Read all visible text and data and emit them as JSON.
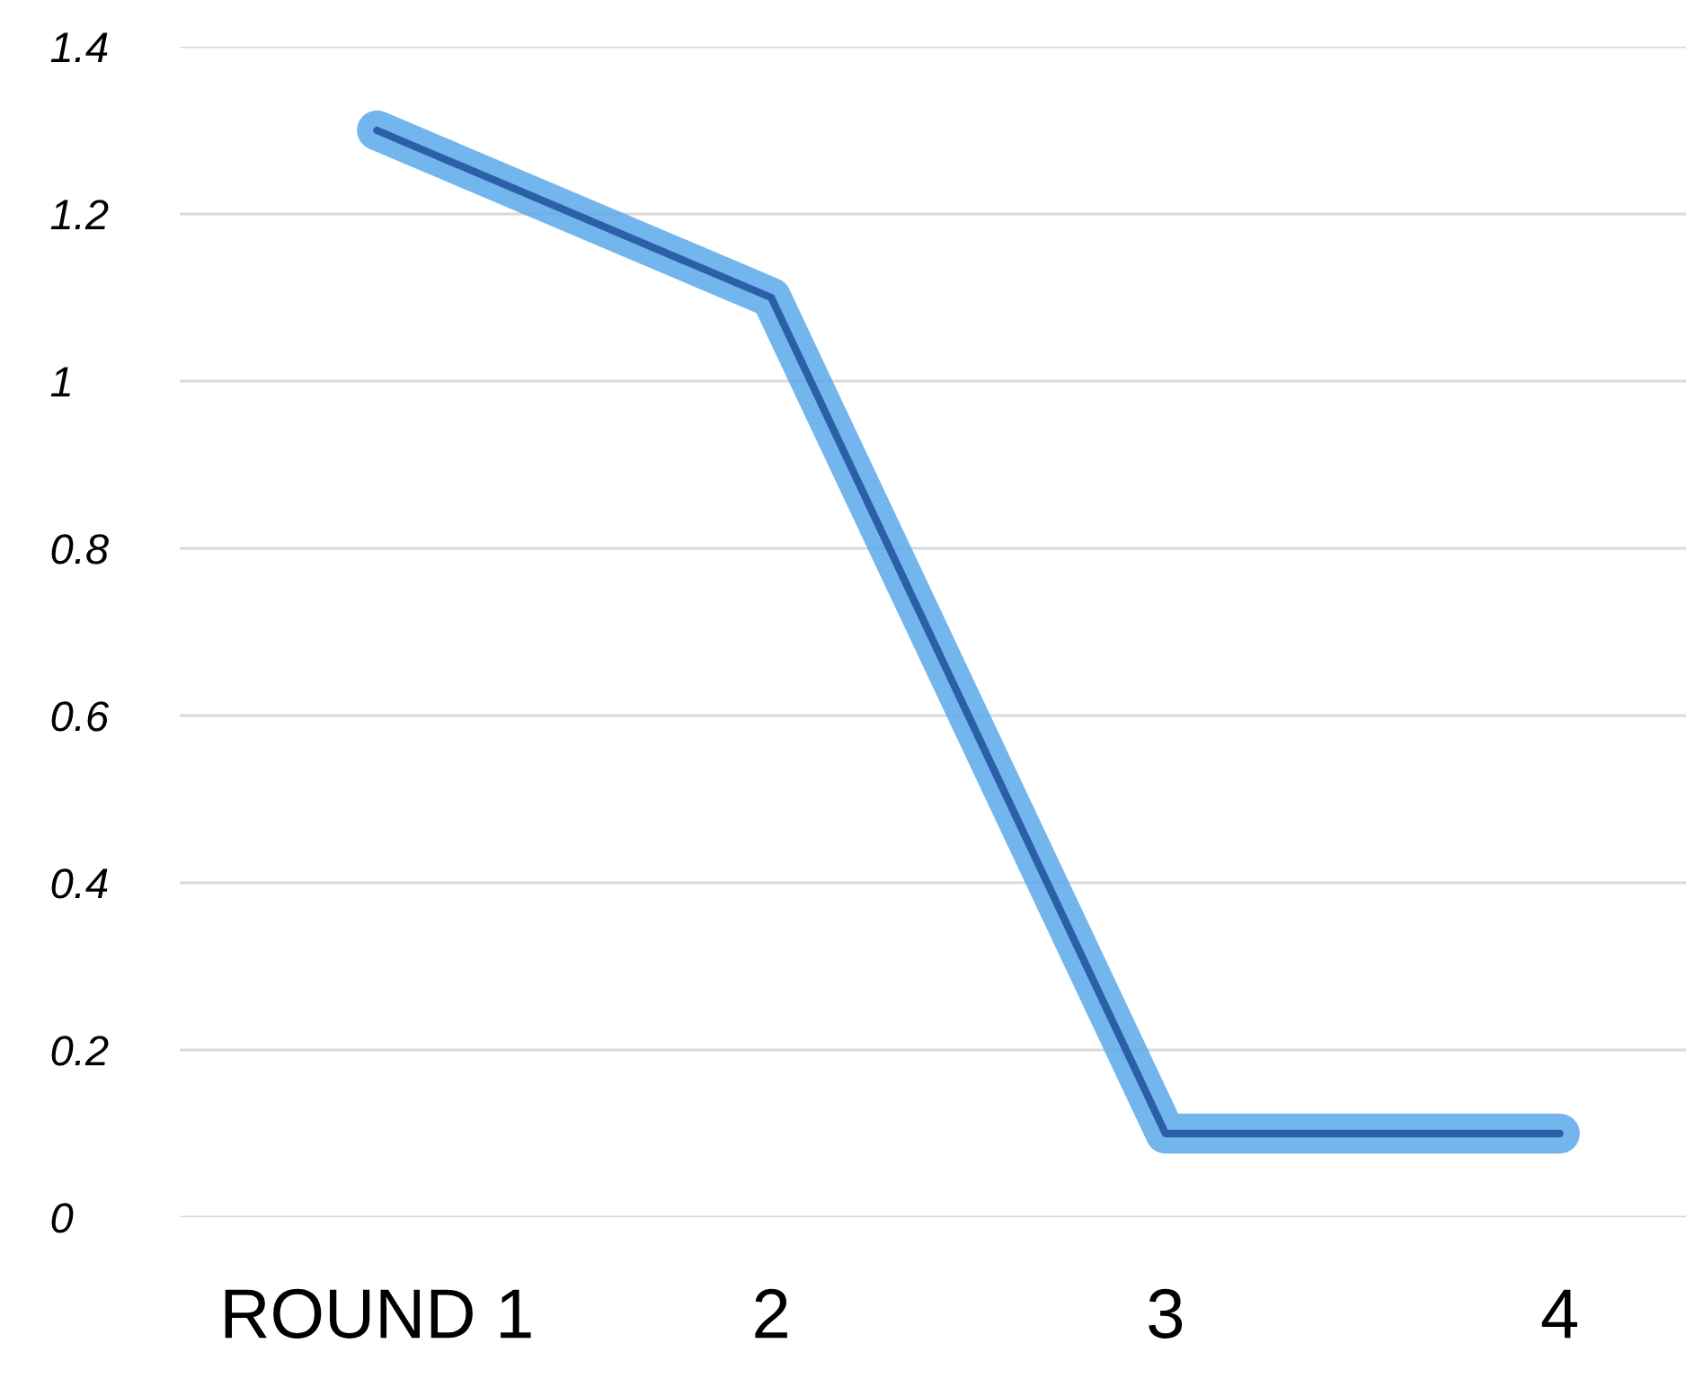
{
  "chart_data": {
    "type": "line",
    "categories": [
      "ROUND 1",
      "2",
      "3",
      "4"
    ],
    "series": [
      {
        "color": "#2b5fa8",
        "values": [
          1.3,
          1.1,
          0.1,
          0.1
        ]
      }
    ],
    "ylim": [
      0,
      1.4
    ],
    "yticks": [
      0,
      0.2,
      0.4,
      0.6,
      0.8,
      1,
      1.2,
      1.4
    ],
    "grid": "y",
    "line_style": "solid",
    "marker": "none"
  }
}
